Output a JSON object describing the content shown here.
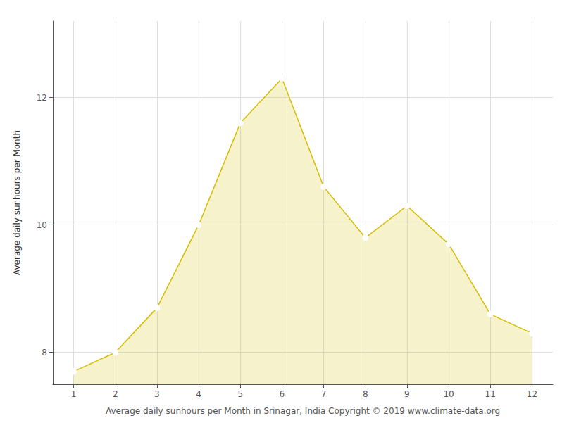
{
  "chart_data": {
    "type": "area",
    "x": [
      1,
      2,
      3,
      4,
      5,
      6,
      7,
      8,
      9,
      10,
      11,
      12
    ],
    "values": [
      7.7,
      8.0,
      8.7,
      10.0,
      11.6,
      12.3,
      10.6,
      9.8,
      10.3,
      9.7,
      8.6,
      8.3
    ],
    "color": "#D4BC00",
    "marker": "circle",
    "xlabel": "Average daily sunhours per Month in Srinagar, India Copyright © 2019 www.climate-data.org",
    "ylabel": "Average daily sunhours per Month",
    "xlim": [
      0.5,
      12.5
    ],
    "xticks": [
      1,
      2,
      3,
      4,
      5,
      6,
      7,
      8,
      9,
      10,
      11,
      12
    ],
    "ylim": [
      7.5,
      13.2
    ],
    "yticks": [
      8,
      10,
      12
    ],
    "grid": true
  }
}
